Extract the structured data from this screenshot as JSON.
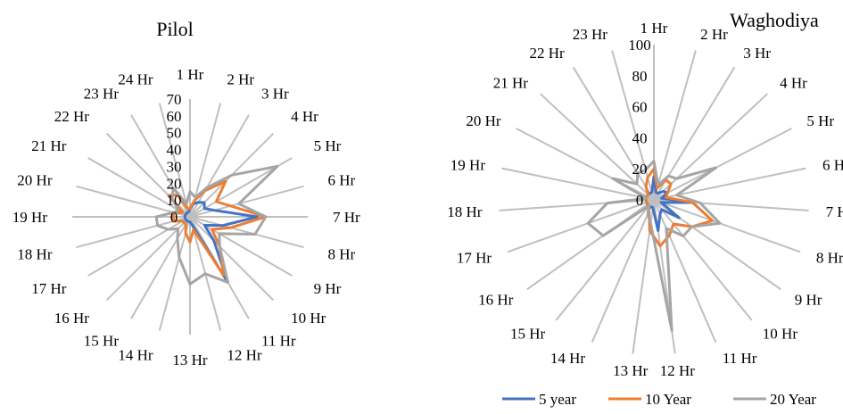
{
  "chart_data": [
    {
      "type": "radar",
      "title": "Pilol",
      "categories": [
        "1 Hr",
        "2 Hr",
        "3 Hr",
        "4 Hr",
        "5 Hr",
        "6 Hr",
        "7 Hr",
        "8 Hr",
        "9 Hr",
        "10 Hr",
        "11 Hr",
        "12 Hr",
        "13 Hr",
        "14 Hr",
        "15 Hr",
        "16 Hr",
        "17 Hr",
        "18 Hr",
        "19 Hr",
        "20 Hr",
        "21 Hr",
        "22 Hr",
        "23 Hr",
        "24 Hr"
      ],
      "rlim": [
        0,
        70
      ],
      "ticks": [
        "0",
        "10",
        "20",
        "30",
        "40",
        "50",
        "60",
        "70"
      ],
      "grid": "spokes only",
      "series": [
        {
          "name": "5 year",
          "values": [
            5,
            8,
            10,
            12,
            10,
            15,
            40,
            20,
            10,
            20,
            45,
            5,
            3,
            3,
            3,
            3,
            3,
            3,
            3,
            3,
            3,
            3,
            3,
            3
          ]
        },
        {
          "name": "10 Year",
          "values": [
            5,
            10,
            18,
            30,
            18,
            25,
            45,
            25,
            15,
            25,
            40,
            8,
            15,
            10,
            5,
            5,
            5,
            10,
            10,
            10,
            5,
            18,
            15,
            5
          ]
        },
        {
          "name": "20 Year",
          "values": [
            15,
            12,
            20,
            35,
            60,
            30,
            45,
            40,
            20,
            25,
            45,
            35,
            40,
            25,
            15,
            10,
            15,
            20,
            20,
            10,
            8,
            15,
            20,
            8
          ]
        }
      ]
    },
    {
      "type": "radar",
      "title": "Waghodiya",
      "categories": [
        "1 Hr",
        "2 Hr",
        "3 Hr",
        "4 Hr",
        "5 Hr",
        "6 Hr",
        "7 Hr",
        "8 Hr",
        "9 Hr",
        "10 Hr",
        "11 Hr",
        "12 Hr",
        "13 Hr",
        "14 Hr",
        "15 Hr",
        "16 Hr",
        "17 Hr",
        "18 Hr",
        "19 Hr",
        "20 Hr",
        "21 Hr",
        "22 Hr",
        "23 Hr"
      ],
      "rlim": [
        0,
        100
      ],
      "ticks": [
        "0",
        "20",
        "40",
        "60",
        "80",
        "100"
      ],
      "grid": "spokes only",
      "series": [
        {
          "name": "5 year",
          "values": [
            15,
            5,
            5,
            8,
            10,
            5,
            25,
            5,
            20,
            8,
            10,
            20,
            5,
            5,
            5,
            5,
            5,
            5,
            5,
            5,
            5,
            5,
            5
          ]
        },
        {
          "name": "10 Year",
          "values": [
            20,
            8,
            15,
            15,
            10,
            8,
            25,
            40,
            30,
            20,
            25,
            30,
            20,
            8,
            5,
            5,
            5,
            5,
            5,
            5,
            5,
            10,
            15
          ]
        },
        {
          "name": "20 Year",
          "values": [
            25,
            10,
            18,
            20,
            45,
            15,
            30,
            45,
            30,
            30,
            20,
            85,
            15,
            10,
            5,
            40,
            45,
            30,
            5,
            30,
            15,
            20,
            20
          ]
        }
      ]
    }
  ],
  "legend": {
    "placement": "bottom-right",
    "items": [
      {
        "label": "5 year",
        "color": "#4472c4"
      },
      {
        "label": "10 Year",
        "color": "#ed7d31"
      },
      {
        "label": "20 Year",
        "color": "#a5a5a5"
      }
    ]
  },
  "colors": {
    "series": [
      "#4472c4",
      "#ed7d31",
      "#a5a5a5"
    ],
    "spokes": "#bfbfbf"
  }
}
